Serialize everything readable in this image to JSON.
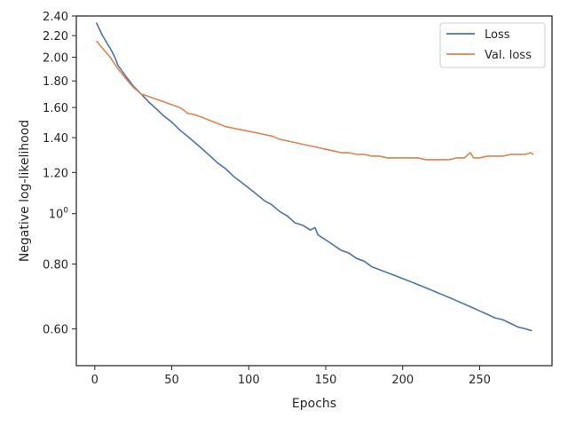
{
  "chart_data": {
    "type": "line",
    "xlabel": "Epochs",
    "ylabel": "Negative log-likelihood",
    "xlim": [
      -12,
      297
    ],
    "ylim": [
      0.51,
      2.4
    ],
    "y_scale": "log",
    "grid": false,
    "legend_position": "top-right",
    "x_ticks": [
      {
        "value": 0,
        "label": "0"
      },
      {
        "value": 50,
        "label": "50"
      },
      {
        "value": 100,
        "label": "100"
      },
      {
        "value": 150,
        "label": "150"
      },
      {
        "value": 200,
        "label": "200"
      },
      {
        "value": 250,
        "label": "250"
      }
    ],
    "y_ticks": [
      {
        "value": 0.6,
        "label": "0.60"
      },
      {
        "value": 0.8,
        "label": "0.80"
      },
      {
        "value": 1.0,
        "label": "10^0"
      },
      {
        "value": 1.2,
        "label": "1.20"
      },
      {
        "value": 1.4,
        "label": "1.40"
      },
      {
        "value": 1.6,
        "label": "1.60"
      },
      {
        "value": 1.8,
        "label": "1.80"
      },
      {
        "value": 2.0,
        "label": "2.00"
      },
      {
        "value": 2.2,
        "label": "2.20"
      },
      {
        "value": 2.4,
        "label": "2.40"
      }
    ],
    "series": [
      {
        "name": "Loss",
        "color": "#4c72b0",
        "x": [
          1,
          5,
          10,
          13,
          15,
          20,
          25,
          30,
          35,
          40,
          45,
          50,
          55,
          60,
          65,
          70,
          75,
          80,
          85,
          90,
          95,
          100,
          105,
          110,
          115,
          120,
          125,
          130,
          135,
          140,
          143,
          145,
          150,
          155,
          160,
          165,
          170,
          175,
          180,
          185,
          190,
          195,
          200,
          205,
          210,
          215,
          220,
          225,
          230,
          235,
          240,
          245,
          250,
          255,
          260,
          265,
          270,
          275,
          280,
          284
        ],
        "y": [
          2.33,
          2.2,
          2.08,
          2.0,
          1.93,
          1.84,
          1.76,
          1.7,
          1.64,
          1.59,
          1.54,
          1.5,
          1.45,
          1.41,
          1.37,
          1.33,
          1.29,
          1.25,
          1.22,
          1.18,
          1.15,
          1.12,
          1.09,
          1.06,
          1.04,
          1.01,
          0.99,
          0.96,
          0.95,
          0.93,
          0.94,
          0.91,
          0.89,
          0.87,
          0.85,
          0.84,
          0.82,
          0.81,
          0.79,
          0.78,
          0.77,
          0.76,
          0.75,
          0.74,
          0.73,
          0.72,
          0.71,
          0.7,
          0.69,
          0.68,
          0.67,
          0.66,
          0.65,
          0.64,
          0.63,
          0.625,
          0.615,
          0.605,
          0.6,
          0.595
        ]
      },
      {
        "name": "Val. loss",
        "color": "#dd8452",
        "x": [
          1,
          5,
          10,
          15,
          20,
          25,
          30,
          35,
          40,
          45,
          50,
          55,
          58,
          60,
          65,
          70,
          75,
          80,
          85,
          90,
          95,
          100,
          105,
          110,
          115,
          120,
          125,
          130,
          135,
          140,
          145,
          150,
          155,
          160,
          165,
          170,
          175,
          180,
          185,
          190,
          195,
          200,
          205,
          210,
          215,
          220,
          225,
          230,
          235,
          240,
          244,
          246,
          250,
          255,
          260,
          265,
          270,
          275,
          280,
          283,
          285
        ],
        "y": [
          2.15,
          2.08,
          2.0,
          1.9,
          1.82,
          1.75,
          1.7,
          1.68,
          1.66,
          1.64,
          1.62,
          1.6,
          1.58,
          1.56,
          1.55,
          1.53,
          1.51,
          1.49,
          1.47,
          1.46,
          1.45,
          1.44,
          1.43,
          1.42,
          1.41,
          1.39,
          1.38,
          1.37,
          1.36,
          1.35,
          1.34,
          1.33,
          1.32,
          1.31,
          1.31,
          1.3,
          1.3,
          1.29,
          1.29,
          1.28,
          1.28,
          1.28,
          1.28,
          1.28,
          1.27,
          1.27,
          1.27,
          1.27,
          1.28,
          1.28,
          1.31,
          1.28,
          1.28,
          1.29,
          1.29,
          1.29,
          1.3,
          1.3,
          1.3,
          1.31,
          1.3
        ]
      }
    ]
  }
}
